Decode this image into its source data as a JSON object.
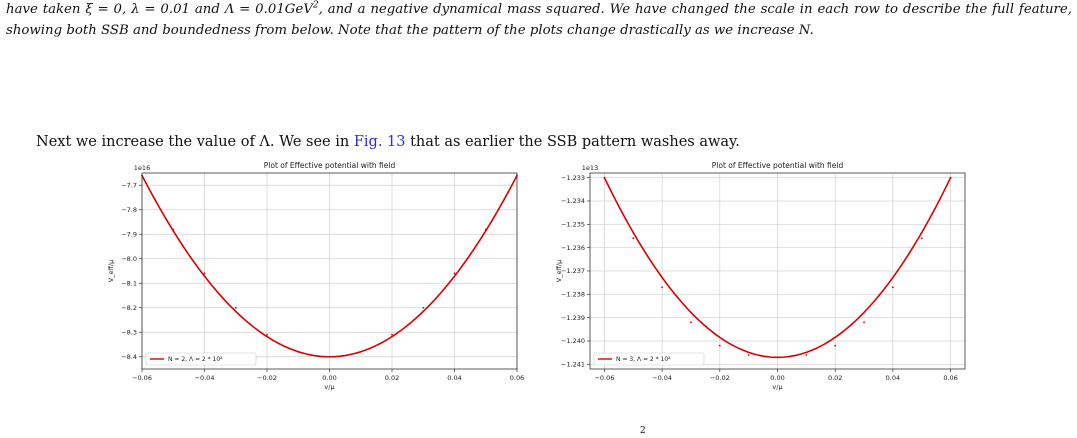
{
  "caption": {
    "segments": [
      {
        "t": "have taken ξ = 0, λ = 0.01 and Λ = 0.01GeV"
      },
      {
        "t": "2",
        "sup": true
      },
      {
        "t": ", and a negative dynamical mass squared. We have changed the scale in each row to describe the full feature, showing both SSB and boundedness from below. Note that the pattern of the plots change drastically as we increase "
      },
      {
        "t": "N",
        "ital": true
      },
      {
        "t": "."
      }
    ]
  },
  "body": {
    "before": "Next we increase the value of Λ. We see in ",
    "ref": "Fig. 13",
    "after": " that as earlier the SSB pattern washes away."
  },
  "footer_fragment": "2",
  "chart_data": [
    {
      "type": "line",
      "title": "Plot of Effective potential with field",
      "xlabel": "v/μ",
      "ylabel": "V_eff/μ",
      "offset_label": "1e16",
      "xlim": [
        -0.06,
        0.06
      ],
      "ylim": [
        -8.45,
        -7.65
      ],
      "xticks": [
        -0.06,
        -0.04,
        -0.02,
        0.0,
        0.02,
        0.04,
        0.06
      ],
      "xtick_labels": [
        "−0.06",
        "−0.04",
        "−0.02",
        "0.00",
        "0.02",
        "0.04",
        "0.06"
      ],
      "yticks": [
        -8.4,
        -8.3,
        -8.2,
        -8.1,
        -8.0,
        -7.9,
        -7.8,
        -7.7
      ],
      "ytick_labels": [
        "−8.4",
        "−8.3",
        "−8.2",
        "−8.1",
        "−8.0",
        "−7.9",
        "−7.8",
        "−7.7"
      ],
      "grid": true,
      "legend_loc": "lower-left",
      "series": [
        {
          "name": "N = 2, Λ = 2 * 10²",
          "color": "#dd0000",
          "x": [
            -0.06,
            -0.05,
            -0.04,
            -0.03,
            -0.02,
            -0.01,
            0.0,
            0.01,
            0.02,
            0.03,
            0.04,
            0.05,
            0.06
          ],
          "y": [
            -7.66,
            -7.88,
            -8.06,
            -8.2,
            -8.31,
            -8.38,
            -8.4,
            -8.38,
            -8.31,
            -8.2,
            -8.06,
            -7.88,
            -7.66
          ]
        }
      ]
    },
    {
      "type": "line",
      "title": "Plot of Effective potential with field",
      "xlabel": "v/μ",
      "ylabel": "V_eff/μ",
      "offset_label": "1e13",
      "xlim": [
        -0.065,
        0.065
      ],
      "ylim": [
        -1.2412,
        -1.2328
      ],
      "xticks": [
        -0.06,
        -0.04,
        -0.02,
        0.0,
        0.02,
        0.04,
        0.06
      ],
      "xtick_labels": [
        "−0.06",
        "−0.04",
        "−0.02",
        "0.00",
        "0.02",
        "0.04",
        "0.06"
      ],
      "yticks": [
        -1.241,
        -1.24,
        -1.239,
        -1.238,
        -1.237,
        -1.236,
        -1.235,
        -1.234,
        -1.233
      ],
      "ytick_labels": [
        "−1.241",
        "−1.240",
        "−1.239",
        "−1.238",
        "−1.237",
        "−1.236",
        "−1.235",
        "−1.234",
        "−1.233"
      ],
      "grid": true,
      "legend_loc": "lower-left",
      "series": [
        {
          "name": "N = 3, Λ = 2 * 10²",
          "color": "#dd0000",
          "x": [
            -0.06,
            -0.05,
            -0.04,
            -0.03,
            -0.02,
            -0.01,
            0.0,
            0.01,
            0.02,
            0.03,
            0.04,
            0.05,
            0.06
          ],
          "y": [
            -1.233,
            -1.2356,
            -1.2377,
            -1.2392,
            -1.2402,
            -1.2406,
            -1.2407,
            -1.2406,
            -1.2402,
            -1.2392,
            -1.2377,
            -1.2356,
            -1.233
          ]
        }
      ]
    }
  ]
}
